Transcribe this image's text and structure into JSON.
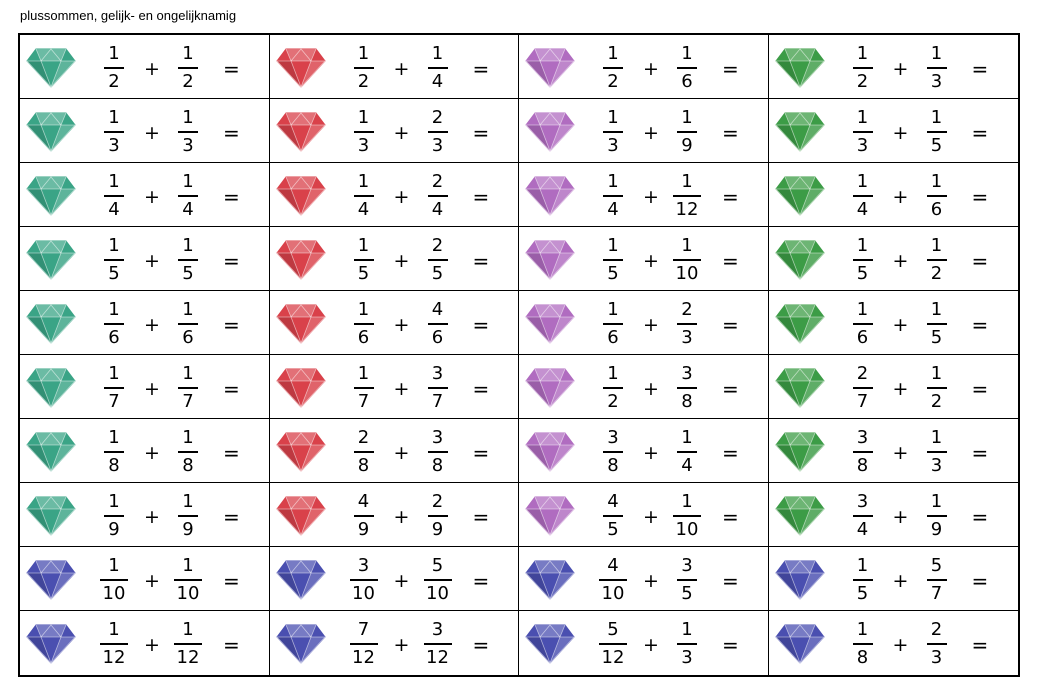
{
  "title": "plussommen, gelijk- en ongelijknamig",
  "operator": "+",
  "equals": "=",
  "gem_colors": {
    "teal": "#3aa486",
    "red": "#d9414a",
    "purple": "#b06cc0",
    "green": "#3c9c46",
    "blue": "#4a4fb0"
  },
  "rows": [
    [
      {
        "gem": "teal",
        "a": [
          "1",
          "2"
        ],
        "b": [
          "1",
          "2"
        ]
      },
      {
        "gem": "red",
        "a": [
          "1",
          "2"
        ],
        "b": [
          "1",
          "4"
        ]
      },
      {
        "gem": "purple",
        "a": [
          "1",
          "2"
        ],
        "b": [
          "1",
          "6"
        ]
      },
      {
        "gem": "green",
        "a": [
          "1",
          "2"
        ],
        "b": [
          "1",
          "3"
        ]
      }
    ],
    [
      {
        "gem": "teal",
        "a": [
          "1",
          "3"
        ],
        "b": [
          "1",
          "3"
        ]
      },
      {
        "gem": "red",
        "a": [
          "1",
          "3"
        ],
        "b": [
          "2",
          "3"
        ]
      },
      {
        "gem": "purple",
        "a": [
          "1",
          "3"
        ],
        "b": [
          "1",
          "9"
        ]
      },
      {
        "gem": "green",
        "a": [
          "1",
          "3"
        ],
        "b": [
          "1",
          "5"
        ]
      }
    ],
    [
      {
        "gem": "teal",
        "a": [
          "1",
          "4"
        ],
        "b": [
          "1",
          "4"
        ]
      },
      {
        "gem": "red",
        "a": [
          "1",
          "4"
        ],
        "b": [
          "2",
          "4"
        ]
      },
      {
        "gem": "purple",
        "a": [
          "1",
          "4"
        ],
        "b": [
          "1",
          "12"
        ]
      },
      {
        "gem": "green",
        "a": [
          "1",
          "4"
        ],
        "b": [
          "1",
          "6"
        ]
      }
    ],
    [
      {
        "gem": "teal",
        "a": [
          "1",
          "5"
        ],
        "b": [
          "1",
          "5"
        ]
      },
      {
        "gem": "red",
        "a": [
          "1",
          "5"
        ],
        "b": [
          "2",
          "5"
        ]
      },
      {
        "gem": "purple",
        "a": [
          "1",
          "5"
        ],
        "b": [
          "1",
          "10"
        ]
      },
      {
        "gem": "green",
        "a": [
          "1",
          "5"
        ],
        "b": [
          "1",
          "2"
        ]
      }
    ],
    [
      {
        "gem": "teal",
        "a": [
          "1",
          "6"
        ],
        "b": [
          "1",
          "6"
        ]
      },
      {
        "gem": "red",
        "a": [
          "1",
          "6"
        ],
        "b": [
          "4",
          "6"
        ]
      },
      {
        "gem": "purple",
        "a": [
          "1",
          "6"
        ],
        "b": [
          "2",
          "3"
        ]
      },
      {
        "gem": "green",
        "a": [
          "1",
          "6"
        ],
        "b": [
          "1",
          "5"
        ]
      }
    ],
    [
      {
        "gem": "teal",
        "a": [
          "1",
          "7"
        ],
        "b": [
          "1",
          "7"
        ]
      },
      {
        "gem": "red",
        "a": [
          "1",
          "7"
        ],
        "b": [
          "3",
          "7"
        ]
      },
      {
        "gem": "purple",
        "a": [
          "1",
          "2"
        ],
        "b": [
          "3",
          "8"
        ]
      },
      {
        "gem": "green",
        "a": [
          "2",
          "7"
        ],
        "b": [
          "1",
          "2"
        ]
      }
    ],
    [
      {
        "gem": "teal",
        "a": [
          "1",
          "8"
        ],
        "b": [
          "1",
          "8"
        ]
      },
      {
        "gem": "red",
        "a": [
          "2",
          "8"
        ],
        "b": [
          "3",
          "8"
        ]
      },
      {
        "gem": "purple",
        "a": [
          "3",
          "8"
        ],
        "b": [
          "1",
          "4"
        ]
      },
      {
        "gem": "green",
        "a": [
          "3",
          "8"
        ],
        "b": [
          "1",
          "3"
        ]
      }
    ],
    [
      {
        "gem": "teal",
        "a": [
          "1",
          "9"
        ],
        "b": [
          "1",
          "9"
        ]
      },
      {
        "gem": "red",
        "a": [
          "4",
          "9"
        ],
        "b": [
          "2",
          "9"
        ]
      },
      {
        "gem": "purple",
        "a": [
          "4",
          "5"
        ],
        "b": [
          "1",
          "10"
        ]
      },
      {
        "gem": "green",
        "a": [
          "3",
          "4"
        ],
        "b": [
          "1",
          "9"
        ]
      }
    ],
    [
      {
        "gem": "blue",
        "a": [
          "1",
          "10"
        ],
        "b": [
          "1",
          "10"
        ]
      },
      {
        "gem": "blue",
        "a": [
          "3",
          "10"
        ],
        "b": [
          "5",
          "10"
        ]
      },
      {
        "gem": "blue",
        "a": [
          "4",
          "10"
        ],
        "b": [
          "3",
          "5"
        ]
      },
      {
        "gem": "blue",
        "a": [
          "1",
          "5"
        ],
        "b": [
          "5",
          "7"
        ]
      }
    ],
    [
      {
        "gem": "blue",
        "a": [
          "1",
          "12"
        ],
        "b": [
          "1",
          "12"
        ]
      },
      {
        "gem": "blue",
        "a": [
          "7",
          "12"
        ],
        "b": [
          "3",
          "12"
        ]
      },
      {
        "gem": "blue",
        "a": [
          "5",
          "12"
        ],
        "b": [
          "1",
          "3"
        ]
      },
      {
        "gem": "blue",
        "a": [
          "1",
          "8"
        ],
        "b": [
          "2",
          "3"
        ]
      }
    ]
  ]
}
